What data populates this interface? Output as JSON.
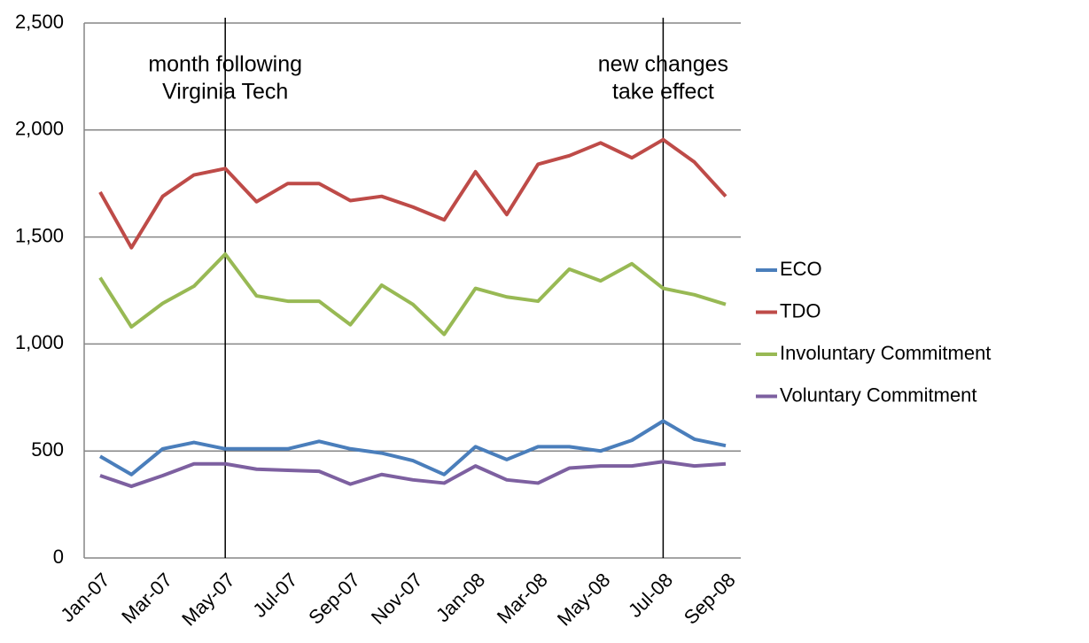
{
  "chart_data": {
    "type": "line",
    "categories": [
      "Jan-07",
      null,
      "Mar-07",
      null,
      "May-07",
      null,
      "Jul-07",
      null,
      "Sep-07",
      null,
      "Nov-07",
      null,
      "Jan-08",
      null,
      "Mar-08",
      null,
      "May-08",
      null,
      "Jul-08",
      null,
      "Sep-08"
    ],
    "series": [
      {
        "name": "ECO",
        "color": "#4a7ebb",
        "values": [
          475,
          390,
          510,
          540,
          510,
          510,
          510,
          545,
          510,
          490,
          455,
          390,
          520,
          460,
          520,
          520,
          500,
          550,
          640,
          555,
          525
        ]
      },
      {
        "name": "TDO",
        "color": "#be4b48",
        "values": [
          1710,
          1450,
          1690,
          1790,
          1820,
          1665,
          1750,
          1750,
          1670,
          1690,
          1640,
          1580,
          1805,
          1605,
          1840,
          1880,
          1940,
          1870,
          1955,
          1850,
          1690
        ]
      },
      {
        "name": "Involuntary Commitment",
        "color": "#98b954",
        "values": [
          1310,
          1080,
          1190,
          1270,
          1420,
          1225,
          1200,
          1200,
          1090,
          1275,
          1185,
          1045,
          1260,
          1220,
          1200,
          1350,
          1295,
          1375,
          1260,
          1230,
          1185
        ]
      },
      {
        "name": "Voluntary Commitment",
        "color": "#7d60a0",
        "values": [
          385,
          335,
          385,
          440,
          440,
          415,
          410,
          405,
          345,
          390,
          365,
          350,
          430,
          365,
          350,
          420,
          430,
          430,
          450,
          430,
          440
        ]
      }
    ],
    "ylim": [
      0,
      2500
    ],
    "yticks": [
      0,
      500,
      {
        "value": 1000,
        "label": "1,000"
      },
      {
        "value": 1500,
        "label": "1,500"
      },
      {
        "value": 2000,
        "label": "2,000"
      },
      {
        "value": 2500,
        "label": "2,500"
      }
    ],
    "grid": true,
    "legend": "right",
    "annotations": [
      {
        "at": "May-07",
        "lines": [
          "month following",
          "Virginia Tech"
        ]
      },
      {
        "at": "Jul-08",
        "lines": [
          "new changes",
          "take effect"
        ]
      }
    ]
  }
}
